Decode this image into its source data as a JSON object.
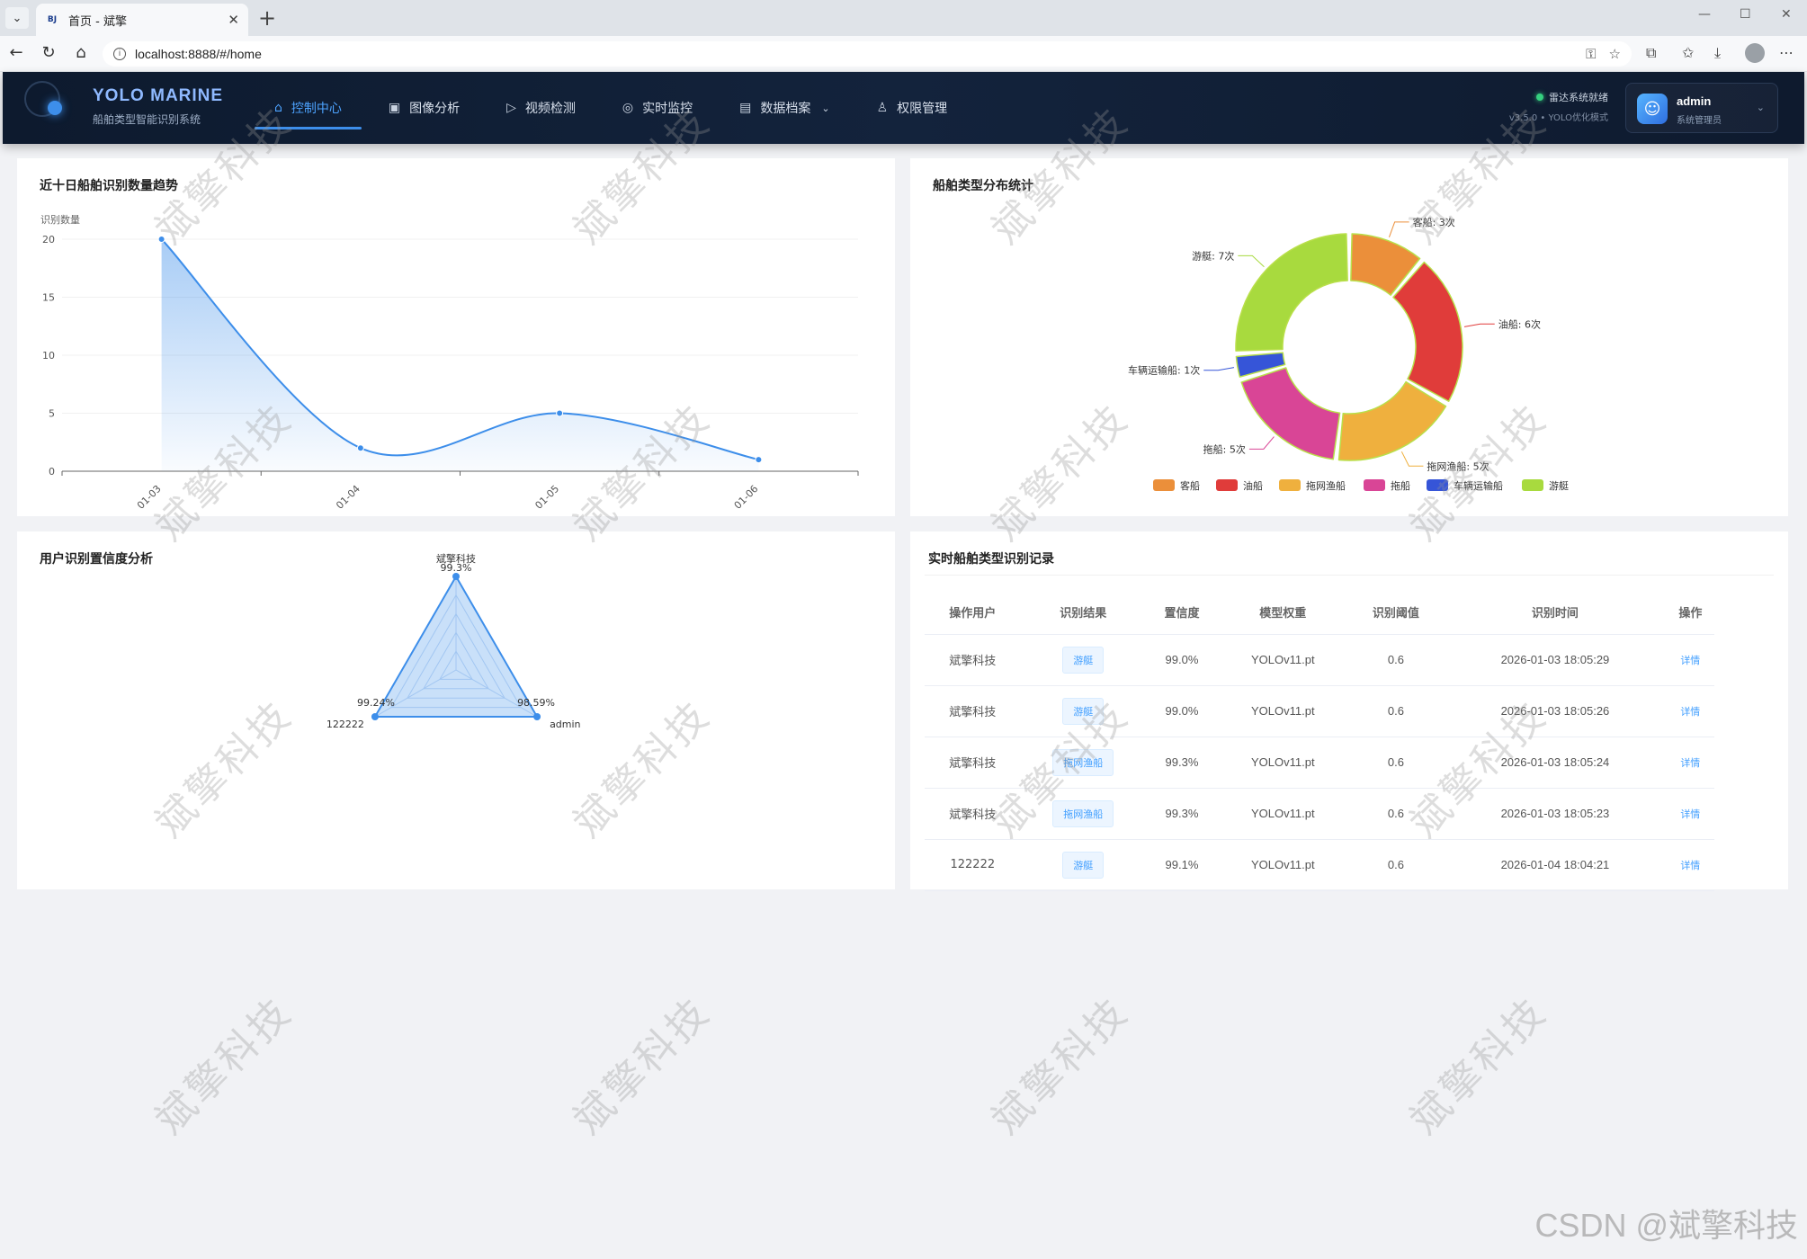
{
  "browser": {
    "tab_favicon": "BJ",
    "tab_title": "首页 - 斌擎",
    "url": "localhost:8888/#/home"
  },
  "app": {
    "logo_title": "YOLO MARINE",
    "logo_sub": "船舶类型智能识别系统",
    "nav": [
      {
        "label": "控制中心",
        "icon": "home-icon"
      },
      {
        "label": "图像分析",
        "icon": "image-icon"
      },
      {
        "label": "视频检测",
        "icon": "play-icon"
      },
      {
        "label": "实时监控",
        "icon": "camera-icon"
      },
      {
        "label": "数据档案",
        "icon": "document-icon"
      },
      {
        "label": "权限管理",
        "icon": "user-icon"
      }
    ],
    "status_text": "雷达系统就绪",
    "version_text": "v3.5.0 • YOLO优化模式",
    "user_name": "admin",
    "user_role": "系统管理员",
    "accent": "#3d8eea",
    "status_color": "#35d07f"
  },
  "trend": {
    "title": "近十日船舶识别数量趋势"
  },
  "pie": {
    "title": "船舶类型分布统计"
  },
  "radar": {
    "title": "用户识别置信度分析"
  },
  "records": {
    "title": "实时船舶类型识别记录",
    "headers": [
      "操作用户",
      "识别结果",
      "置信度",
      "模型权重",
      "识别阈值",
      "识别时间",
      "操作"
    ],
    "rows": [
      {
        "user": "斌擎科技",
        "result": "游艇",
        "conf": "99.0%",
        "model": "YOLOv11.pt",
        "thr": "0.6",
        "time": "2026-01-03 18:05:29",
        "action": "详情"
      },
      {
        "user": "斌擎科技",
        "result": "游艇",
        "conf": "99.0%",
        "model": "YOLOv11.pt",
        "thr": "0.6",
        "time": "2026-01-03 18:05:26",
        "action": "详情"
      },
      {
        "user": "斌擎科技",
        "result": "拖网渔船",
        "conf": "99.3%",
        "model": "YOLOv11.pt",
        "thr": "0.6",
        "time": "2026-01-03 18:05:24",
        "action": "详情"
      },
      {
        "user": "斌擎科技",
        "result": "拖网渔船",
        "conf": "99.3%",
        "model": "YOLOv11.pt",
        "thr": "0.6",
        "time": "2026-01-03 18:05:23",
        "action": "详情"
      },
      {
        "user": "122222",
        "result": "游艇",
        "conf": "99.1%",
        "model": "YOLOv11.pt",
        "thr": "0.6",
        "time": "2026-01-04 18:04:21",
        "action": "详情"
      }
    ]
  },
  "watermark": "斌擎科技",
  "csdn": "CSDN @斌擎科技",
  "chart_data": [
    {
      "type": "area",
      "title": "近十日船舶识别数量趋势",
      "ylabel": "识别数量",
      "categories": [
        "01-03",
        "01-04",
        "01-05",
        "01-06"
      ],
      "values": [
        20,
        2,
        5,
        1
      ],
      "yticks": [
        0,
        5,
        10,
        15,
        20
      ],
      "ylim": [
        0,
        20
      ],
      "grid": true,
      "color": "#3d8eea"
    },
    {
      "type": "pie",
      "title": "船舶类型分布统计",
      "legend_position": "bottom",
      "slices": [
        {
          "name": "客船",
          "value": 3,
          "label": "客船: 3次",
          "color": "#eb8f3a"
        },
        {
          "name": "油船",
          "value": 6,
          "label": "油船: 6次",
          "color": "#e03c3a"
        },
        {
          "name": "拖网渔船",
          "value": 5,
          "label": "拖网渔船: 5次",
          "color": "#efb03e"
        },
        {
          "name": "拖船",
          "value": 5,
          "label": "拖船: 5次",
          "color": "#d94596"
        },
        {
          "name": "车辆运输船",
          "value": 1,
          "label": "车辆运输船: 1次",
          "color": "#3655d8"
        },
        {
          "name": "游艇",
          "value": 7,
          "label": "游艇: 7次",
          "color": "#a8da3e"
        }
      ]
    },
    {
      "type": "radar",
      "title": "用户识别置信度分析",
      "indicators": [
        "斌擎科技",
        "admin",
        "122222"
      ],
      "values": [
        99.3,
        98.59,
        99.24
      ],
      "value_labels": [
        "99.3%",
        "98.59%",
        "99.24%"
      ],
      "color": "#3d8eea"
    }
  ]
}
